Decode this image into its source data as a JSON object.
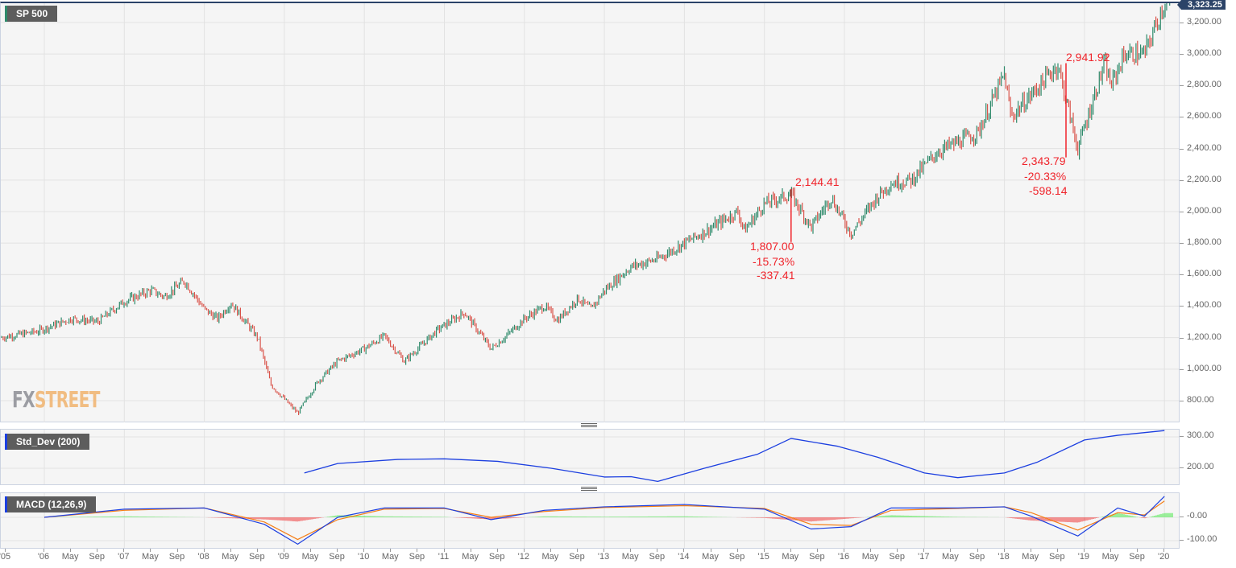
{
  "main_panel": {
    "title": "SP 500",
    "last_price_label": "3,323.25",
    "y_axis_labels": [
      "3,200.00",
      "3,000.00",
      "2,800.00",
      "2,600.00",
      "2,400.00",
      "2,200.00",
      "2,000.00",
      "1,800.00",
      "1,600.00",
      "1,400.00",
      "1,200.00",
      "1,000.00",
      "800.00"
    ],
    "watermark": {
      "part1": "FX",
      "part2": "STREET"
    },
    "annotations": [
      {
        "peak": "2,144.41",
        "trough": "1,807.00",
        "pct": "-15.73%",
        "abs": "-337.41"
      },
      {
        "peak": "2,941.92",
        "trough": "2,343.79",
        "pct": "-20.33%",
        "abs": "-598.14"
      }
    ]
  },
  "std_panel": {
    "title": "Std_Dev (200)",
    "y_axis_labels": [
      "300.00",
      "200.00"
    ]
  },
  "macd_panel": {
    "title": "MACD (12,26,9)",
    "y_axis_labels": [
      "-0.00",
      "-100.00"
    ]
  },
  "x_axis": {
    "labels": [
      "'05",
      "'06",
      "May",
      "Sep",
      "'07",
      "May",
      "Sep",
      "'08",
      "May",
      "Sep",
      "'09",
      "May",
      "Sep",
      "'10",
      "May",
      "Sep",
      "'11",
      "May",
      "Sep",
      "'12",
      "May",
      "Sep",
      "'13",
      "May",
      "Sep",
      "'14",
      "May",
      "Sep",
      "'15",
      "May",
      "Sep",
      "'16",
      "May",
      "Sep",
      "'17",
      "May",
      "Sep",
      "'18",
      "May",
      "Sep",
      "'19",
      "May",
      "Sep",
      "'20"
    ]
  },
  "colors": {
    "up_bar": "#2e8a6a",
    "down_bar": "#d9534a",
    "std_line": "#1c3fe0",
    "macd_line": "#1c3fe0",
    "signal_line": "#f57f17",
    "hist_pos": "#3ee83e",
    "hist_neg": "#f02a2a",
    "annotation": "#f0242b",
    "price_flag": "#2b4368"
  },
  "chart_data": [
    {
      "type": "ohlc",
      "title": "SP 500",
      "timeframe": "weekly",
      "xlabel": "",
      "ylabel": "",
      "ylim": [
        700,
        3330
      ],
      "grid": true,
      "x": [
        "2005-12",
        "2006-05",
        "2006-09",
        "2007-01",
        "2007-05",
        "2007-07",
        "2007-10",
        "2008-01",
        "2008-03",
        "2008-05",
        "2008-09",
        "2008-11",
        "2009-03",
        "2009-06",
        "2009-09",
        "2010-01",
        "2010-04",
        "2010-07",
        "2010-12",
        "2011-04",
        "2011-08",
        "2011-10",
        "2012-01",
        "2012-04",
        "2012-06",
        "2012-09",
        "2012-11",
        "2013-01",
        "2013-05",
        "2013-09",
        "2014-01",
        "2014-04",
        "2014-09",
        "2014-10",
        "2015-01",
        "2015-05",
        "2015-08",
        "2015-11",
        "2016-02",
        "2016-06",
        "2016-08",
        "2016-11",
        "2017-03",
        "2017-09",
        "2018-01",
        "2018-02",
        "2018-09",
        "2018-12",
        "2019-04",
        "2019-05",
        "2019-07",
        "2019-10",
        "2020-01"
      ],
      "close": [
        1240,
        1320,
        1300,
        1430,
        1500,
        1460,
        1560,
        1380,
        1320,
        1420,
        1200,
        900,
        720,
        920,
        1050,
        1130,
        1210,
        1050,
        1250,
        1360,
        1130,
        1200,
        1320,
        1400,
        1310,
        1450,
        1380,
        1500,
        1650,
        1700,
        1800,
        1870,
        2000,
        1880,
        2050,
        2110,
        1900,
        2090,
        1860,
        2100,
        2180,
        2200,
        2380,
        2500,
        2870,
        2600,
        2930,
        2400,
        2940,
        2800,
        3000,
        3000,
        3323.25
      ],
      "annotations": [
        {
          "from": "2015-05",
          "to": "2015-08",
          "peak": 2144.41,
          "trough": 1807.0,
          "change_pct": -15.73,
          "change_abs": -337.41
        },
        {
          "from": "2018-09",
          "to": "2018-12",
          "peak": 2941.92,
          "trough": 2343.79,
          "change_pct": -20.33,
          "change_abs": -598.14
        }
      ],
      "last": 3323.25
    },
    {
      "type": "line",
      "title": "Std_Dev (200)",
      "ylim": [
        150,
        330
      ],
      "x": [
        "2009-04",
        "2009-09",
        "2010-06",
        "2011-01",
        "2011-09",
        "2012-05",
        "2013-01",
        "2013-05",
        "2013-09",
        "2014-04",
        "2014-12",
        "2015-05",
        "2015-12",
        "2016-06",
        "2017-01",
        "2017-06",
        "2018-01",
        "2018-06",
        "2019-01",
        "2019-06",
        "2020-01"
      ],
      "values": [
        185,
        215,
        228,
        230,
        222,
        200,
        172,
        173,
        158,
        200,
        245,
        295,
        270,
        235,
        185,
        170,
        185,
        220,
        290,
        305,
        320
      ]
    },
    {
      "type": "line",
      "title": "MACD (12,26,9)",
      "ylim": [
        -120,
        130
      ],
      "series": [
        {
          "name": "MACD",
          "x": [
            "2006",
            "2007",
            "2008",
            "2008-10",
            "2009-03",
            "2009-09",
            "2010-04",
            "2011-01",
            "2011-08",
            "2012-04",
            "2013-01",
            "2014-01",
            "2015-01",
            "2015-08",
            "2016-02",
            "2016-08",
            "2017-06",
            "2018-01",
            "2018-05",
            "2018-12",
            "2019-06",
            "2019-10",
            "2020-01"
          ],
          "values": [
            0,
            35,
            40,
            -30,
            -115,
            0,
            40,
            40,
            -10,
            30,
            45,
            55,
            35,
            -50,
            -40,
            40,
            40,
            45,
            5,
            -80,
            40,
            5,
            90
          ]
        },
        {
          "name": "Signal",
          "x": [
            "2006",
            "2007",
            "2008",
            "2008-10",
            "2009-03",
            "2009-09",
            "2010-04",
            "2011-01",
            "2011-08",
            "2012-04",
            "2013-01",
            "2014-01",
            "2015-01",
            "2015-08",
            "2016-02",
            "2016-08",
            "2017-06",
            "2018-01",
            "2018-05",
            "2018-12",
            "2019-06",
            "2019-10",
            "2020-01"
          ],
          "values": [
            0,
            30,
            40,
            -20,
            -95,
            -10,
            35,
            38,
            0,
            25,
            42,
            50,
            38,
            -30,
            -35,
            30,
            38,
            45,
            20,
            -55,
            20,
            10,
            70
          ]
        }
      ],
      "histogram": "MACD - Signal"
    }
  ]
}
